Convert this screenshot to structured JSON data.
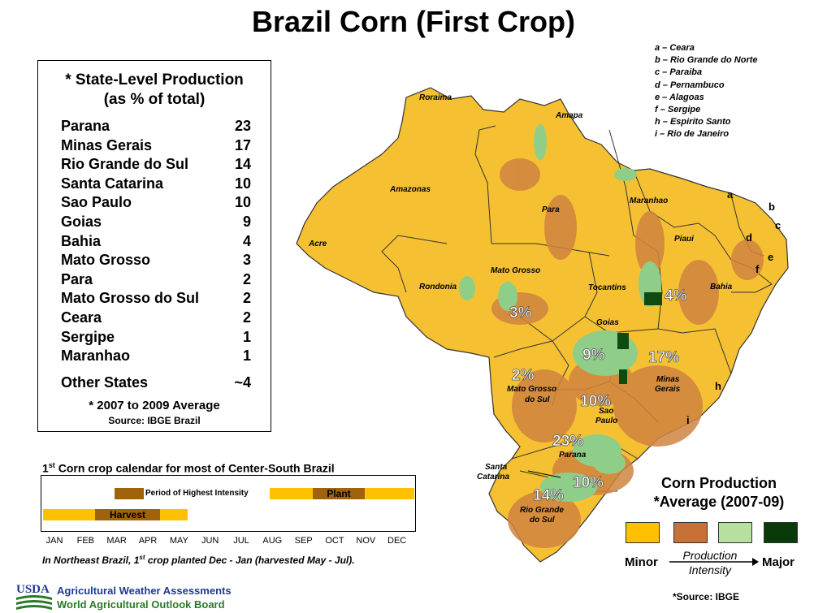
{
  "title": "Brazil Corn (First Crop)",
  "production_table": {
    "heading_line1": "* State-Level Production",
    "heading_line2": "(as % of total)",
    "rows": [
      {
        "state": "Parana",
        "value": "23"
      },
      {
        "state": "Minas Gerais",
        "value": "17"
      },
      {
        "state": "Rio Grande do Sul",
        "value": "14"
      },
      {
        "state": "Santa Catarina",
        "value": "10"
      },
      {
        "state": "Sao Paulo",
        "value": "10"
      },
      {
        "state": "Goias",
        "value": "9"
      },
      {
        "state": "Bahia",
        "value": "4"
      },
      {
        "state": "Mato Grosso",
        "value": "3"
      },
      {
        "state": "Para",
        "value": "2"
      },
      {
        "state": "Mato Grosso do Sul",
        "value": "2"
      },
      {
        "state": "Ceara",
        "value": "2"
      },
      {
        "state": "Sergipe",
        "value": "1"
      },
      {
        "state": "Maranhao",
        "value": "1"
      }
    ],
    "other": {
      "state": "Other States",
      "value": "~4"
    },
    "note": "* 2007 to 2009 Average",
    "source": "Source: IBGE Brazil"
  },
  "calendar": {
    "title_prefix": "1",
    "title_sup": "st",
    "title_rest": " Corn crop calendar for most of Center-South Brazil",
    "intensity_label": "Period of Highest Intensity",
    "plant_label": "Plant",
    "harvest_label": "Harvest",
    "months": [
      "JAN",
      "FEB",
      "MAR",
      "APR",
      "MAY",
      "JUN",
      "JUL",
      "AUG",
      "SEP",
      "OCT",
      "NOV",
      "DEC"
    ],
    "note_prefix": "In Northeast Brazil, 1",
    "note_sup": "st",
    "note_rest": " crop planted Dec - Jan (harvested May - Jul).",
    "colors": {
      "period": "#ffc000",
      "intensity": "#a0620a"
    }
  },
  "abbreviations": [
    "a – Ceara",
    "b – Rio Grande do Norte",
    "c – Paraiba",
    "d – Pernambuco",
    "e – Alagoas",
    "f – Sergipe",
    "h – Espirito Santo",
    "i – Rio de Janeiro"
  ],
  "map": {
    "state_labels": {
      "roraima": "Roraima",
      "amapa": "Amapa",
      "amazonas": "Amazonas",
      "para": "Para",
      "maranhao": "Maranhao",
      "piaui": "Piaui",
      "acre": "Acre",
      "mato_grosso": "Mato Grosso",
      "rondonia": "Rondonia",
      "tocantins": "Tocantins",
      "bahia": "Bahia",
      "goias": "Goias",
      "minas_gerais_1": "Minas",
      "minas_gerais_2": "Gerais",
      "mato_grosso_do_sul_1": "Mato Grosso",
      "mato_grosso_do_sul_2": "do Sul",
      "sao_paulo_1": "Sao",
      "sao_paulo_2": "Paulo",
      "parana": "Parana",
      "santa_catarina_1": "Santa",
      "santa_catarina_2": "Catarina",
      "rio_grande_do_sul_1": "Rio Grande",
      "rio_grande_do_sul_2": "do Sul"
    },
    "letters": {
      "a": "a",
      "b": "b",
      "c": "c",
      "d": "d",
      "e": "e",
      "f": "f",
      "h": "h",
      "i": "i"
    },
    "percentages": {
      "bahia": "4%",
      "mato_grosso": "3%",
      "goias": "9%",
      "minas_gerais": "17%",
      "mato_grosso_do_sul": "2%",
      "sao_paulo": "10%",
      "parana": "23%",
      "santa_catarina": "10%",
      "rio_grande_do_sul": "14%"
    },
    "colors": {
      "minor": "#f5c132",
      "low": "#d08440",
      "high": "#8fce88",
      "major": "#0f4a12",
      "border": "#333333"
    }
  },
  "legend": {
    "title_line1": "Corn Production",
    "title_line2": "*Average (2007-09)",
    "minor_label": "Minor",
    "major_label": "Major",
    "mid_line1": "Production",
    "mid_line2": "Intensity",
    "source": "*Source: IBGE",
    "colors": [
      "#ffc000",
      "#c87137",
      "#b6dfa0",
      "#0a3a0a"
    ]
  },
  "footer": {
    "logo_text": "USDA",
    "line1": "Agricultural Weather Assessments",
    "line2": "World Agricultural Outlook Board"
  }
}
